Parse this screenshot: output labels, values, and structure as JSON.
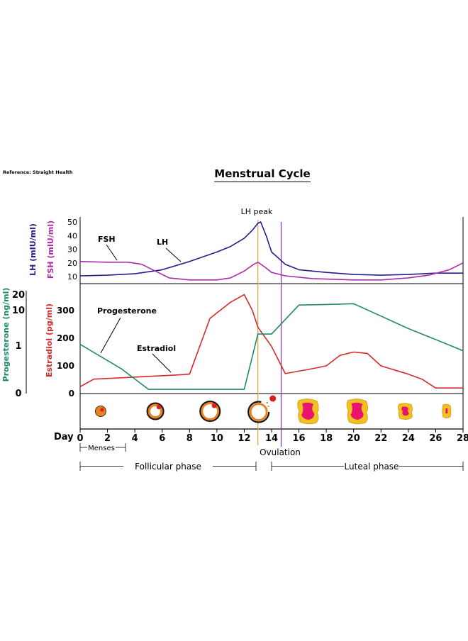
{
  "reference": "Reference: Straight Health",
  "title": "Menstrual Cycle",
  "colors": {
    "lh": "#2a1a8c",
    "fsh": "#b02aa8",
    "estradiol": "#d42a2a",
    "progesterone": "#1f8a6a",
    "lh_peak_line": "#e0a040",
    "ovulation_line": "#8a2ab0"
  },
  "chart_data": [
    {
      "type": "line",
      "panel": "gonadotropins",
      "y_axis_left_outer": {
        "label": "LH (mIU/ml)",
        "color": "#2a1a8c"
      },
      "y_axis_left_inner": {
        "label": "FSH (mIU/ml)",
        "color": "#b02aa8"
      },
      "ylim": [
        5,
        52
      ],
      "yticks": [
        10,
        20,
        30,
        40,
        50
      ],
      "xlim": [
        0,
        28
      ],
      "annotations": [
        "LH peak"
      ],
      "series": [
        {
          "name": "LH",
          "label": "LH",
          "color": "#2a1a8c",
          "x": [
            0,
            2,
            4,
            6,
            8,
            10,
            11,
            12,
            12.6,
            13,
            13.2,
            13.6,
            14,
            15,
            16,
            18,
            20,
            22,
            24,
            26,
            28
          ],
          "y": [
            10.5,
            11,
            12,
            15,
            21,
            28,
            32,
            38,
            44,
            49,
            50,
            40,
            28,
            19,
            15,
            13,
            11.5,
            11,
            11.5,
            12.5,
            12.5
          ]
        },
        {
          "name": "FSH",
          "label": "FSH",
          "color": "#b02aa8",
          "x": [
            0,
            2,
            3.5,
            4.5,
            5.5,
            6.5,
            8,
            10,
            11,
            12,
            12.7,
            13,
            13.5,
            14,
            15,
            17,
            20,
            22,
            24,
            25.5,
            27,
            28
          ],
          "y": [
            21,
            20.5,
            20.5,
            19,
            14,
            9,
            7.5,
            7.5,
            9,
            14,
            19,
            20.5,
            17,
            13,
            10.5,
            8.5,
            7.5,
            7.5,
            9,
            11,
            15,
            20
          ]
        }
      ]
    },
    {
      "type": "line",
      "panel": "steroids",
      "y_axis_left_outer": {
        "label": "Progesterone (ng/ml)",
        "color": "#1f8a6a",
        "ticks": [
          "20",
          "10",
          "1",
          "0"
        ]
      },
      "y_axis_left_inner": {
        "label": "Estradiol (pg/ml)",
        "color": "#d42a2a"
      },
      "ylim": [
        0,
        360
      ],
      "yticks": [
        0,
        100,
        200,
        300
      ],
      "xlim": [
        0,
        28
      ],
      "series": [
        {
          "name": "Estradiol",
          "label": "Estradiol",
          "color": "#d42a2a",
          "x": [
            0,
            1,
            3,
            5,
            7,
            8,
            9.5,
            11,
            12,
            12.6,
            13,
            14,
            15,
            17,
            18,
            19,
            20,
            21,
            22,
            24,
            25,
            26,
            28
          ],
          "y": [
            25,
            52,
            57,
            62,
            67,
            70,
            272,
            330,
            358,
            300,
            240,
            170,
            72,
            90,
            100,
            138,
            150,
            145,
            100,
            70,
            52,
            20,
            20
          ]
        },
        {
          "name": "Progesterone",
          "label": "Progesterone",
          "color": "#1f8a6a",
          "x": [
            0,
            3,
            5,
            6,
            8,
            10,
            12,
            13,
            14,
            16,
            18,
            20,
            22,
            24,
            26,
            28
          ],
          "y": [
            178,
            90,
            15,
            15,
            15,
            15,
            15,
            215,
            215,
            320,
            322,
            325,
            280,
            235,
            195,
            155
          ]
        }
      ]
    }
  ],
  "x_axis": {
    "label": "Day",
    "ticks": [
      "0",
      "2",
      "4",
      "6",
      "8",
      "10",
      "12",
      "14",
      "16",
      "18",
      "20",
      "22",
      "24",
      "26",
      "28"
    ]
  },
  "markers": {
    "lh_peak_day": 13,
    "ovulation_day": 14.7
  },
  "phases": {
    "menses": "Menses",
    "ovulation": "Ovulation",
    "follicular": "Follicular phase",
    "luteal": "Luteal phase"
  },
  "follicles": [
    {
      "stage": "primary follicle",
      "day": 1.5
    },
    {
      "stage": "secondary follicle",
      "day": 5.5
    },
    {
      "stage": "antral follicle",
      "day": 9.5
    },
    {
      "stage": "ovulating follicle",
      "day": 13
    },
    {
      "stage": "corpus luteum",
      "day": 16.7
    },
    {
      "stage": "corpus luteum",
      "day": 20.3
    },
    {
      "stage": "regressing corpus luteum",
      "day": 23.8
    },
    {
      "stage": "corpus albicans",
      "day": 26.8
    }
  ]
}
